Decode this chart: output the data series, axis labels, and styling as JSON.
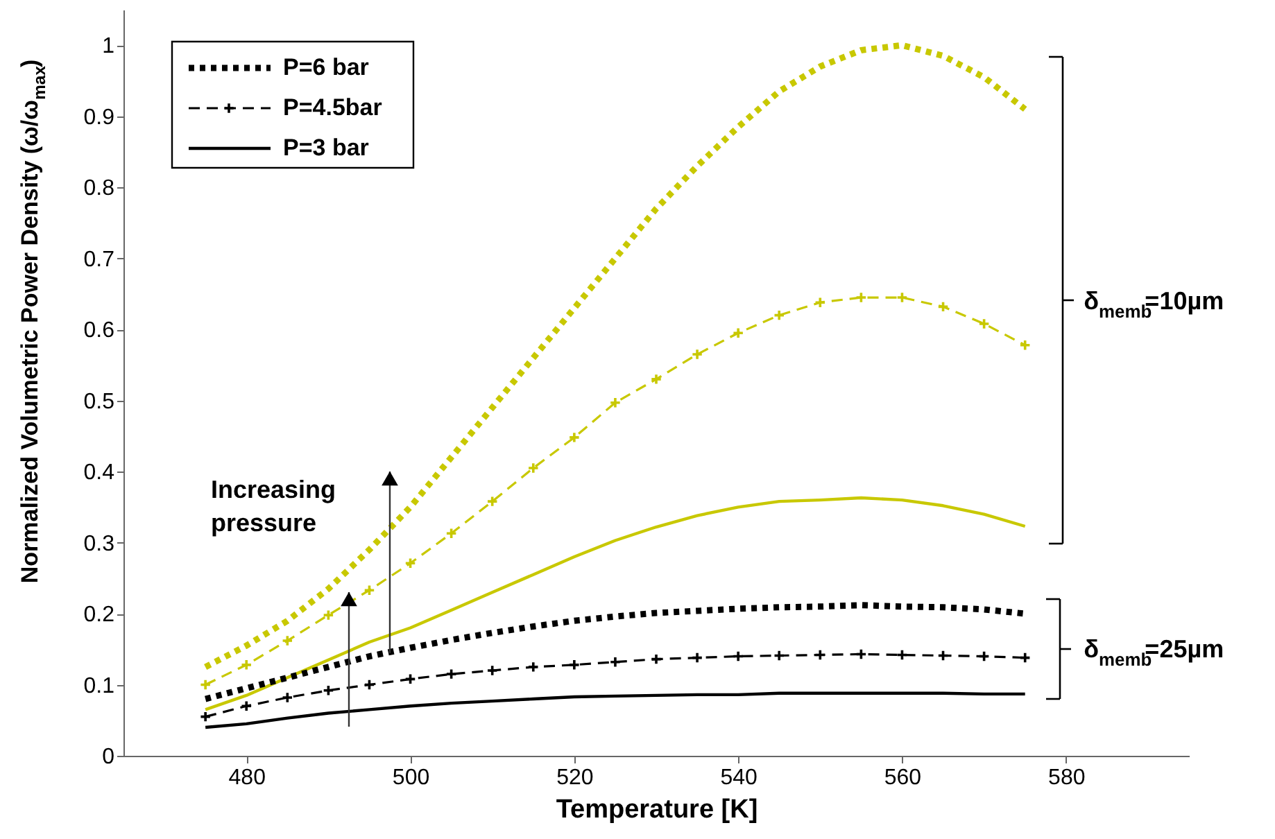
{
  "chart_data": {
    "type": "line",
    "xlabel": "Temperature [K]",
    "ylabel": "Normalized Volumetric Power Density (ω/ω$_{max}$)",
    "x": [
      475,
      480,
      485,
      490,
      495,
      500,
      505,
      510,
      515,
      520,
      525,
      530,
      535,
      540,
      545,
      550,
      555,
      560,
      565,
      570,
      575
    ],
    "xlim": [
      465,
      595
    ],
    "xticks": [
      480,
      500,
      520,
      540,
      560,
      580
    ],
    "ylim": [
      0,
      1.05
    ],
    "yticks": [
      0,
      0.1,
      0.2,
      0.3,
      0.4,
      0.5,
      0.6,
      0.7,
      0.8,
      0.9,
      1
    ],
    "legend": "top left",
    "series": [
      {
        "color": "#c8c800",
        "line_style": "dotted",
        "marker": "none",
        "values": [
          0.125,
          0.155,
          0.19,
          0.235,
          0.29,
          0.35,
          0.42,
          0.49,
          0.56,
          0.63,
          0.7,
          0.77,
          0.83,
          0.885,
          0.935,
          0.97,
          0.993,
          1.0,
          0.985,
          0.955,
          0.91
        ]
      },
      {
        "color": "#c8c800",
        "line_style": "dashed",
        "marker": "cross",
        "values": [
          0.1,
          0.128,
          0.162,
          0.198,
          0.233,
          0.271,
          0.313,
          0.358,
          0.405,
          0.448,
          0.497,
          0.53,
          0.565,
          0.595,
          0.62,
          0.638,
          0.645,
          0.645,
          0.632,
          0.608,
          0.578
        ]
      },
      {
        "color": "#c8c800",
        "line_style": "solid",
        "marker": "none",
        "values": [
          0.065,
          0.085,
          0.11,
          0.135,
          0.16,
          0.18,
          0.205,
          0.23,
          0.255,
          0.28,
          0.303,
          0.322,
          0.338,
          0.35,
          0.358,
          0.36,
          0.363,
          0.36,
          0.352,
          0.34,
          0.323
        ]
      },
      {
        "name": "P=6 bar",
        "color": "#000000",
        "line_style": "dotted",
        "marker": "none",
        "values": [
          0.08,
          0.095,
          0.11,
          0.125,
          0.14,
          0.152,
          0.163,
          0.173,
          0.182,
          0.19,
          0.196,
          0.201,
          0.204,
          0.207,
          0.209,
          0.21,
          0.212,
          0.21,
          0.209,
          0.206,
          0.2
        ]
      },
      {
        "name": "P=4.5bar",
        "color": "#000000",
        "line_style": "dashed",
        "marker": "cross",
        "values": [
          0.055,
          0.07,
          0.082,
          0.092,
          0.1,
          0.108,
          0.115,
          0.12,
          0.125,
          0.128,
          0.132,
          0.136,
          0.138,
          0.14,
          0.141,
          0.142,
          0.143,
          0.142,
          0.141,
          0.14,
          0.138
        ]
      },
      {
        "name": "P=3 bar",
        "color": "#000000",
        "line_style": "solid",
        "marker": "none",
        "values": [
          0.04,
          0.045,
          0.053,
          0.06,
          0.065,
          0.07,
          0.074,
          0.077,
          0.08,
          0.083,
          0.084,
          0.085,
          0.086,
          0.086,
          0.088,
          0.088,
          0.088,
          0.088,
          0.088,
          0.087,
          0.087
        ]
      }
    ],
    "annotations": [
      "Increasing pressure",
      "δ$_{memb}$=10µm",
      "δ$_{memb}$=25µm"
    ]
  }
}
